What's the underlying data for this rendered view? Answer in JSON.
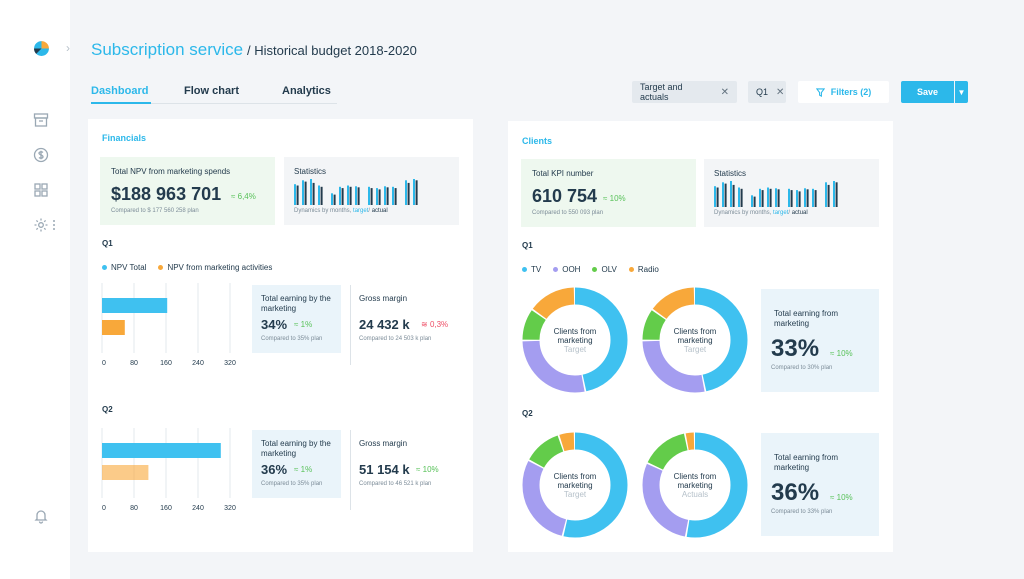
{
  "header": {
    "title": "Subscription service",
    "subtitle": "/ Historical budget 2018-2020"
  },
  "tabs": [
    {
      "label": "Dashboard",
      "active": true
    },
    {
      "label": "Flow chart",
      "active": false
    },
    {
      "label": "Analytics",
      "active": false
    }
  ],
  "toolbar": {
    "chips": [
      "Target and actuals",
      "Q1"
    ],
    "filters_label": "Filters (2)",
    "save_label": "Save"
  },
  "colors": {
    "accent": "#2cb8ea",
    "tv": "#3fc1f0",
    "ooh": "#a49df0",
    "olv": "#63cc4a",
    "radio": "#f8a83a",
    "npv_total": "#3fc1f0",
    "npv_marketing": "#f8a83a"
  },
  "financials": {
    "title": "Financials",
    "npv": {
      "label": "Total NPV from marketing spends",
      "value": "$188 963 701",
      "delta": "6,4%",
      "compare": "Compared to $ 177 560 258 plan"
    },
    "stats": {
      "label": "Statistics",
      "caption_prefix": "Dynamics by months,",
      "caption_target": "target",
      "caption_sep": "/",
      "caption_actual": "actual"
    },
    "legend": [
      "NPV Total",
      "NPV from marketing activities"
    ],
    "q1": {
      "label": "Q1",
      "earning": {
        "label": "Total earning by the marketing",
        "value": "34%",
        "delta": "1%",
        "compare": "Compared to 35% plan"
      },
      "margin": {
        "label": "Gross margin",
        "value": "24 432 k",
        "delta": "0,3%",
        "compare": "Compared to 24 503 k plan"
      }
    },
    "q2": {
      "label": "Q2",
      "earning": {
        "label": "Total earning by the marketing",
        "value": "36%",
        "delta": "1%",
        "compare": "Compared to 35% plan"
      },
      "margin": {
        "label": "Gross margin",
        "value": "51 154 k",
        "delta": "10%",
        "compare": "Compared to 46 521 k plan"
      }
    }
  },
  "clients": {
    "title": "Clients",
    "kpi": {
      "label": "Total KPI number",
      "value": "610 754",
      "delta": "10%",
      "compare": "Compared to 550 093 plan"
    },
    "stats": {
      "label": "Statistics",
      "caption_prefix": "Dynamics by months,",
      "caption_target": "target",
      "caption_sep": "/",
      "caption_actual": "actual"
    },
    "legend": [
      "TV",
      "OOH",
      "OLV",
      "Radio"
    ],
    "q1": {
      "label": "Q1",
      "donut_a": {
        "line1": "Clients from",
        "line2": "marketing",
        "sub": "Target"
      },
      "donut_b": {
        "line1": "Clients from",
        "line2": "marketing",
        "sub": "Target"
      },
      "earning": {
        "label": "Total earning from marketing",
        "value": "33%",
        "delta": "10%",
        "compare": "Compared to 30% plan"
      }
    },
    "q2": {
      "label": "Q2",
      "donut_a": {
        "line1": "Clients from",
        "line2": "marketing",
        "sub": "Target"
      },
      "donut_b": {
        "line1": "Clients from",
        "line2": "marketing",
        "sub": "Actuals"
      },
      "earning": {
        "label": "Total earning from marketing",
        "value": "36%",
        "delta": "10%",
        "compare": "Compared to 33% plan"
      }
    }
  },
  "chart_data": [
    {
      "type": "bar",
      "orientation": "horizontal",
      "ticks": [
        0,
        80,
        160,
        240,
        320
      ],
      "xlim": [
        0,
        320
      ],
      "series": [
        {
          "name": "NPV Total",
          "values": [
            163
          ]
        },
        {
          "name": "NPV from marketing activities",
          "values": [
            57
          ]
        }
      ]
    },
    {
      "type": "bar",
      "orientation": "horizontal",
      "ticks": [
        0,
        80,
        160,
        240,
        320
      ],
      "xlim": [
        0,
        320
      ],
      "series": [
        {
          "name": "NPV Total",
          "values": [
            297
          ]
        },
        {
          "name": "NPV from marketing activities",
          "values": [
            116
          ]
        }
      ]
    },
    {
      "type": "bar",
      "series": [
        {
          "name": "target",
          "values": [
            0.8,
            0.95,
            1.0,
            0.75,
            0.45,
            0.7,
            0.75,
            0.72,
            0.7,
            0.65,
            0.72,
            0.7,
            0.95,
            1.0
          ]
        },
        {
          "name": "actual",
          "values": [
            0.75,
            0.9,
            0.85,
            0.7,
            0.4,
            0.65,
            0.7,
            0.68,
            0.65,
            0.6,
            0.68,
            0.65,
            0.85,
            0.95
          ]
        }
      ]
    },
    {
      "type": "pie",
      "categories": [
        "TV",
        "OOH",
        "OLV",
        "Radio"
      ],
      "values": [
        47,
        28,
        10,
        15
      ]
    },
    {
      "type": "pie",
      "categories": [
        "TV",
        "OOH",
        "OLV",
        "Radio"
      ],
      "values": [
        47,
        28,
        10,
        15
      ]
    },
    {
      "type": "pie",
      "categories": [
        "TV",
        "OOH",
        "OLV",
        "Radio"
      ],
      "values": [
        54,
        29,
        12,
        5
      ]
    },
    {
      "type": "pie",
      "categories": [
        "TV",
        "OOH",
        "OLV",
        "Radio"
      ],
      "values": [
        53,
        29,
        15,
        3
      ]
    }
  ]
}
